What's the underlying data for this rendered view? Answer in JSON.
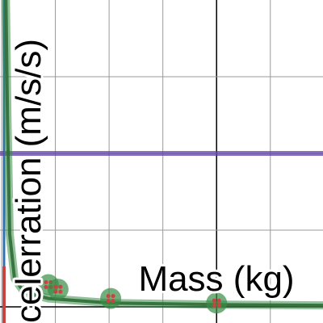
{
  "chart_data": {
    "type": "scatter",
    "x_label": "Mass (kg)",
    "y_label": "celerration (m/s/s)",
    "xlim": [
      -4.03,
      1.98
    ],
    "ylim": [
      -0.21,
      4
    ],
    "xticks": [
      -4,
      -3,
      -2,
      -1,
      0,
      1
    ],
    "yticks": [
      0,
      1,
      2,
      3
    ],
    "grid": true,
    "points": {
      "color": "#388c46",
      "dot_color": "#c74440",
      "x": [
        -3.13,
        -2.95,
        -1.97,
        0
      ],
      "values": [
        0.29,
        0.23,
        0.11,
        0.05
      ]
    },
    "curve": {
      "color": "#2d6b35",
      "x": [
        -3.92,
        -3.89,
        -3.85,
        -3.76,
        -3.58,
        -3.13,
        -1.97,
        0,
        1.98
      ],
      "values": [
        4,
        2.42,
        0.95,
        0.37,
        0.19,
        0.11,
        0.05,
        0.03,
        0.02
      ]
    },
    "hline": {
      "color": "#6042a6",
      "x": [
        -4.03,
        1.98
      ],
      "values": [
        2,
        2
      ]
    }
  }
}
